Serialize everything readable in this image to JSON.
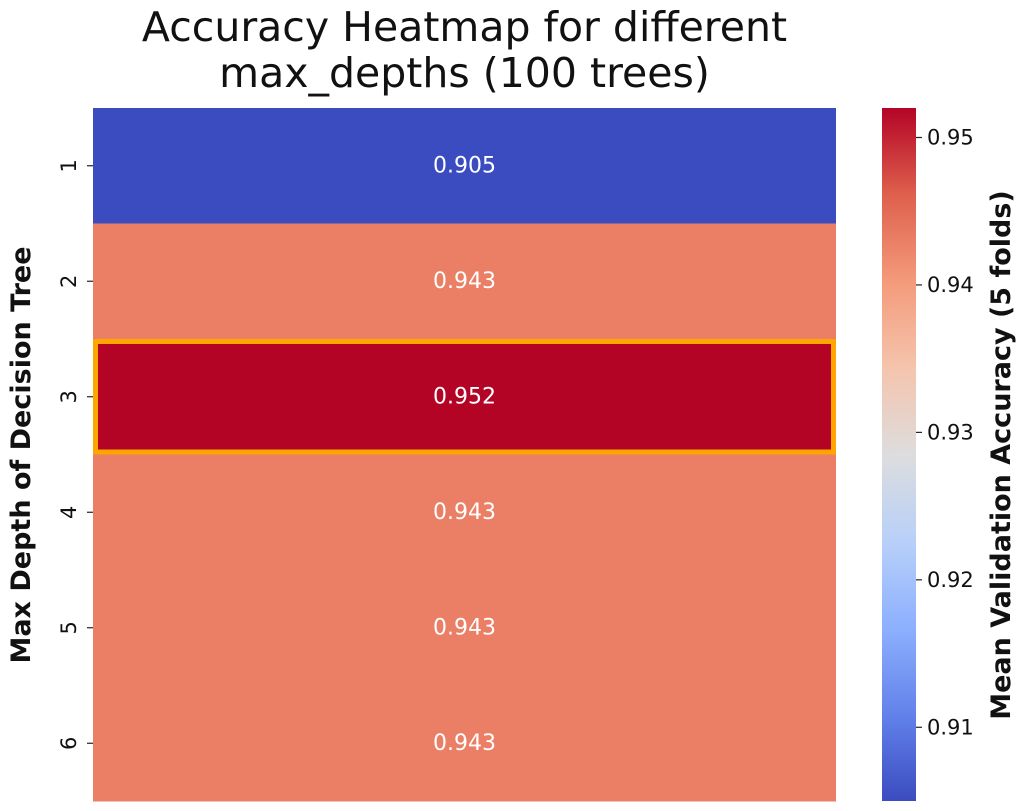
{
  "chart_data": {
    "type": "heatmap",
    "title_lines": [
      "Accuracy Heatmap for different",
      "max_depths (100 trees)"
    ],
    "ylabel": "Max Depth of Decision Tree",
    "colorbar_label": "Mean Validation Accuracy (5 folds)",
    "rows": [
      "1",
      "2",
      "3",
      "4",
      "5",
      "6"
    ],
    "columns": [
      ""
    ],
    "values": [
      0.905,
      0.943,
      0.952,
      0.943,
      0.943,
      0.943
    ],
    "cell_labels": [
      "0.905",
      "0.943",
      "0.952",
      "0.943",
      "0.943",
      "0.943"
    ],
    "highlighted_row": "3",
    "highlight_color": "#ffa500",
    "colormap": "coolwarm",
    "color_range": [
      0.905,
      0.952
    ],
    "colorbar_ticks": [
      0.91,
      0.92,
      0.93,
      0.94,
      0.95
    ],
    "colorbar_tick_labels": [
      "0.91",
      "0.92",
      "0.93",
      "0.94",
      "0.95"
    ]
  }
}
